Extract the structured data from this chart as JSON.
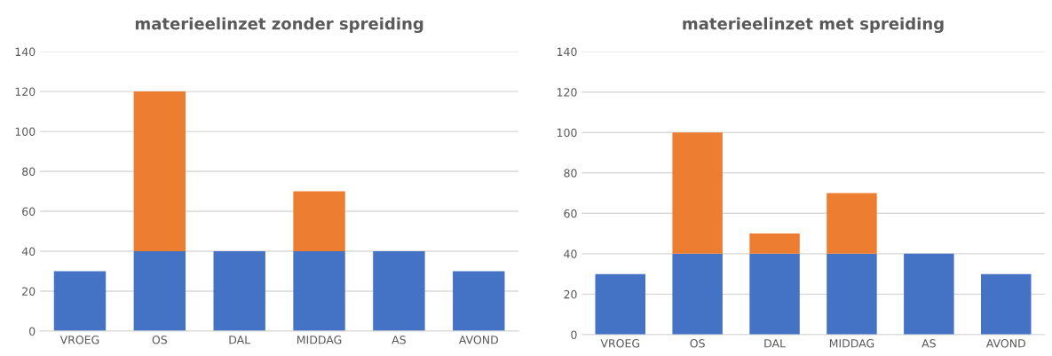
{
  "chart_data": [
    {
      "type": "bar",
      "title": "materieelinzet zonder spreiding",
      "stacked": true,
      "grid": "y",
      "categories": [
        "VROEG",
        "OS",
        "DAL",
        "MIDDAG",
        "AS",
        "AVOND"
      ],
      "ylim": [
        0,
        140
      ],
      "yticks": [
        0,
        20,
        40,
        60,
        80,
        100,
        120,
        140
      ],
      "series": [
        {
          "color": "#4472c4",
          "values": [
            30,
            40,
            40,
            40,
            40,
            30
          ]
        },
        {
          "color": "#ed7d31",
          "values": [
            null,
            80,
            null,
            30,
            null,
            null
          ]
        }
      ]
    },
    {
      "type": "bar",
      "title": "materieelinzet met spreiding",
      "stacked": true,
      "grid": "y",
      "categories": [
        "VROEG",
        "OS",
        "DAL",
        "MIDDAG",
        "AS",
        "AVOND"
      ],
      "ylim": [
        0,
        140
      ],
      "yticks": [
        0,
        20,
        40,
        60,
        80,
        100,
        120,
        140
      ],
      "series": [
        {
          "color": "#4472c4",
          "values": [
            30,
            40,
            40,
            40,
            40,
            30
          ]
        },
        {
          "color": "#ed7d31",
          "values": [
            null,
            60,
            10,
            30,
            null,
            null
          ]
        }
      ]
    }
  ]
}
